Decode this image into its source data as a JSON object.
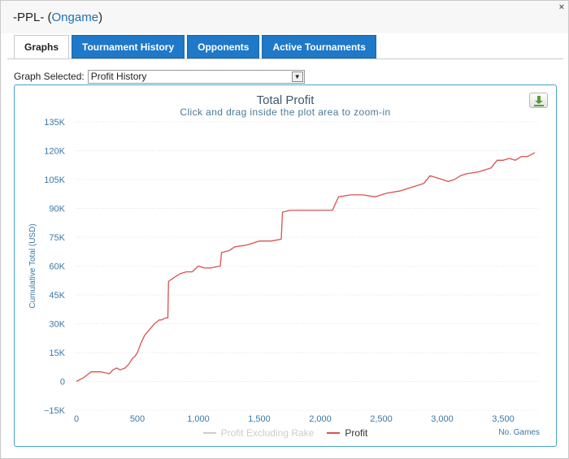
{
  "window": {
    "title_prefix": "-PPL- (",
    "title_link": "Ongame",
    "title_suffix": ")",
    "close_glyph": "×"
  },
  "tabs": [
    {
      "label": "Graphs",
      "active": true
    },
    {
      "label": "Tournament History",
      "active": false
    },
    {
      "label": "Opponents",
      "active": false
    },
    {
      "label": "Active Tournaments",
      "active": false
    }
  ],
  "graph_select": {
    "label": "Graph Selected:",
    "value": "Profit History",
    "arrow_glyph": "▼"
  },
  "icons": {
    "download": "download-icon"
  },
  "colors": {
    "accent_tab": "#1f78c8",
    "chart_border": "#4aa3c7",
    "profit_line": "#d9534f",
    "muted_series": "#cccccc",
    "axis_text": "#3a78a8"
  },
  "chart_data": {
    "type": "line",
    "title": "Total Profit",
    "subtitle": "Click and drag inside the plot area to zoom-in",
    "xlabel": "No. Games",
    "ylabel": "Cumulative Total (USD)",
    "xlim": [
      0,
      3800
    ],
    "ylim": [
      -15000,
      135000
    ],
    "x_ticks": [
      0,
      500,
      1000,
      1500,
      2000,
      2500,
      3000,
      3500
    ],
    "x_tick_labels": [
      "0",
      "500",
      "1,000",
      "1,500",
      "2,000",
      "2,500",
      "3,000",
      "3,500"
    ],
    "y_ticks": [
      -15000,
      0,
      15000,
      30000,
      45000,
      60000,
      75000,
      90000,
      105000,
      120000,
      135000
    ],
    "y_tick_labels": [
      "−15K",
      "0",
      "15K",
      "30K",
      "45K",
      "60K",
      "75K",
      "90K",
      "105K",
      "120K",
      "135K"
    ],
    "grid": "horizontal",
    "legend_position": "bottom-center",
    "series": [
      {
        "name": "Profit Excluding Rake",
        "visible": false,
        "x": [],
        "y": []
      },
      {
        "name": "Profit",
        "visible": true,
        "x": [
          0,
          60,
          120,
          200,
          270,
          300,
          330,
          360,
          400,
          430,
          460,
          480,
          500,
          530,
          560,
          600,
          640,
          680,
          700,
          730,
          750,
          755,
          800,
          850,
          900,
          950,
          1000,
          1050,
          1100,
          1180,
          1190,
          1250,
          1300,
          1400,
          1500,
          1600,
          1680,
          1690,
          1750,
          1850,
          1950,
          2100,
          2150,
          2250,
          2350,
          2450,
          2550,
          2650,
          2750,
          2850,
          2900,
          2950,
          3000,
          3050,
          3100,
          3150,
          3200,
          3300,
          3400,
          3450,
          3500,
          3550,
          3600,
          3650,
          3700,
          3760
        ],
        "y": [
          0,
          2000,
          5000,
          5000,
          4000,
          6000,
          7000,
          6000,
          7000,
          9000,
          12000,
          13000,
          15000,
          20000,
          24000,
          27000,
          30000,
          32000,
          32000,
          33000,
          33000,
          52000,
          54000,
          56000,
          57000,
          57000,
          60000,
          59000,
          59000,
          60000,
          67000,
          68000,
          70000,
          71000,
          73000,
          73000,
          74000,
          88000,
          89000,
          89000,
          89000,
          89000,
          96000,
          97000,
          97000,
          96000,
          98000,
          99000,
          101000,
          103000,
          107000,
          106000,
          105000,
          104000,
          105000,
          107000,
          108000,
          109000,
          111000,
          115000,
          115000,
          116000,
          115000,
          117000,
          117000,
          119000
        ]
      }
    ]
  }
}
